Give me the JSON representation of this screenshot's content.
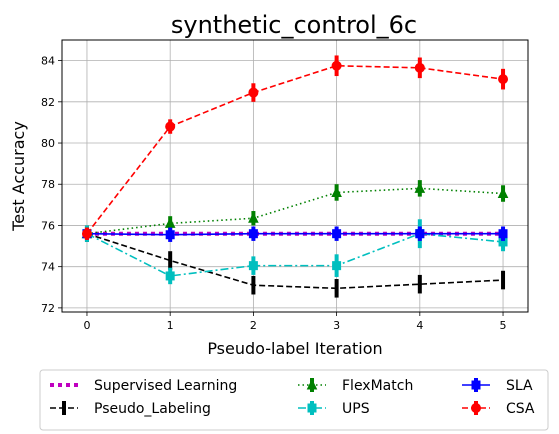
{
  "chart_data": {
    "type": "line",
    "title": "synthetic_control_6c",
    "xlabel": "Pseudo-label Iteration",
    "ylabel": "Test Accuracy",
    "x": [
      0,
      1,
      2,
      3,
      4,
      5
    ],
    "xticks": [
      "0",
      "1",
      "2",
      "3",
      "4",
      "5"
    ],
    "yticks": [
      "72",
      "74",
      "76",
      "78",
      "80",
      "82",
      "84"
    ],
    "xlim": [
      -0.3,
      5.3
    ],
    "ylim": [
      71.8,
      85.0
    ],
    "grid": true,
    "legend_position": "below plot",
    "series": [
      {
        "name": "Supervised Learning",
        "color": "#bf00bf",
        "linestyle": "dotted-thick",
        "marker": "none",
        "values": [
          75.6,
          75.6,
          75.6,
          75.6,
          75.6,
          75.6
        ],
        "errors": [
          0,
          0,
          0,
          0,
          0,
          0
        ]
      },
      {
        "name": "Pseudo_Labeling",
        "color": "#000000",
        "linestyle": "dashed",
        "marker": "none",
        "values": [
          75.6,
          74.3,
          73.1,
          72.95,
          73.15,
          73.35
        ],
        "errors": [
          0.4,
          0.45,
          0.45,
          0.45,
          0.45,
          0.45
        ]
      },
      {
        "name": "FlexMatch",
        "color": "#008000",
        "linestyle": "dotted",
        "marker": "triangle",
        "values": [
          75.6,
          76.1,
          76.35,
          77.6,
          77.8,
          77.55
        ],
        "errors": [
          0.35,
          0.35,
          0.35,
          0.4,
          0.4,
          0.4
        ]
      },
      {
        "name": "UPS",
        "color": "#00bfbf",
        "linestyle": "dashdot",
        "marker": "square",
        "values": [
          75.6,
          73.55,
          74.05,
          74.05,
          75.6,
          75.2
        ],
        "errors": [
          0.4,
          0.4,
          0.45,
          0.55,
          0.7,
          0.45
        ]
      },
      {
        "name": "SLA",
        "color": "#0000ff",
        "linestyle": "solid",
        "marker": "square",
        "values": [
          75.6,
          75.55,
          75.6,
          75.6,
          75.6,
          75.6
        ],
        "errors": [
          0.3,
          0.35,
          0.35,
          0.35,
          0.35,
          0.35
        ]
      },
      {
        "name": "CSA",
        "color": "#ff0000",
        "linestyle": "dashed",
        "marker": "circle",
        "values": [
          75.6,
          80.8,
          82.45,
          83.75,
          83.65,
          83.1
        ],
        "errors": [
          0.3,
          0.35,
          0.45,
          0.5,
          0.5,
          0.5
        ]
      }
    ]
  }
}
